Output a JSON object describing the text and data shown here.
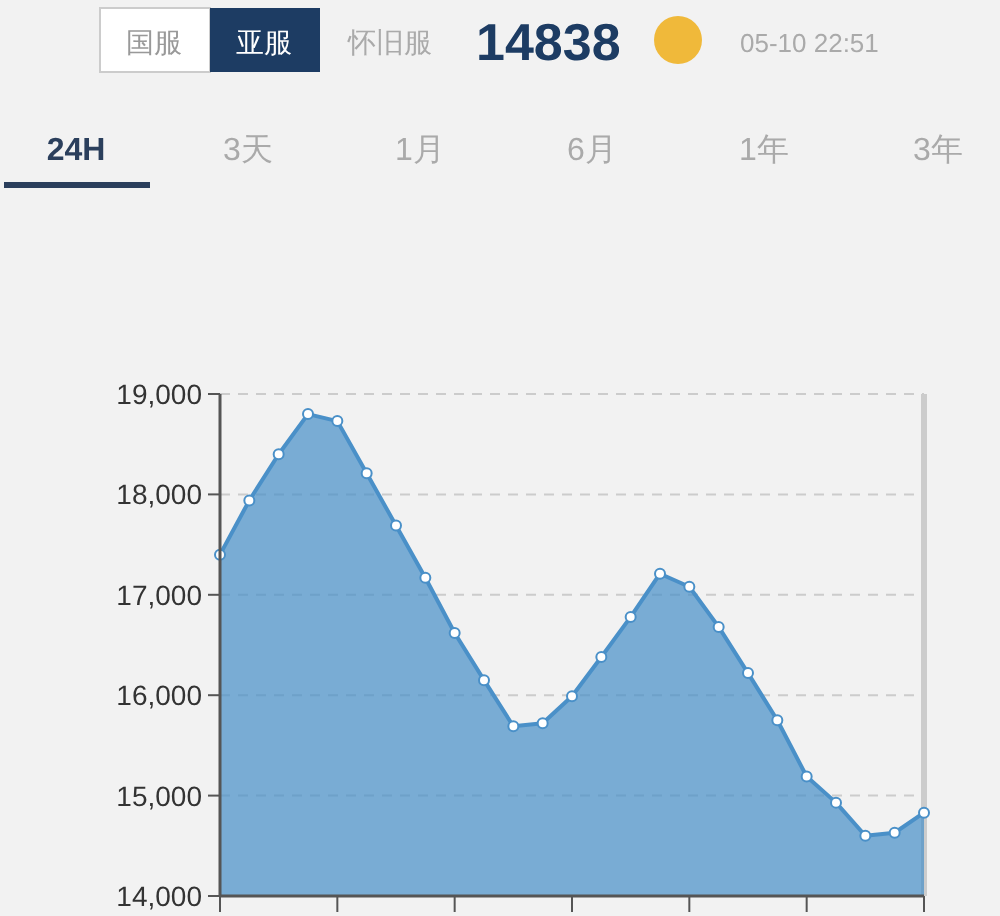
{
  "chart_data": {
    "type": "area",
    "annotations": [
      "国服",
      "亚服",
      "怀旧服",
      "14838",
      "05-10 22:51",
      "24H",
      "3天",
      "1月",
      "6月",
      "1年",
      "3年"
    ],
    "categories": [
      null,
      null,
      null,
      null,
      null,
      null,
      null,
      null,
      null,
      null,
      null,
      null,
      null,
      null,
      null,
      null,
      null,
      null,
      null,
      null,
      null,
      null,
      null,
      null,
      null
    ],
    "series": [
      {
        "color": "#4a90c8",
        "values": [
          17400,
          17940,
          18400,
          18800,
          18730,
          18210,
          17690,
          17170,
          16620,
          16150,
          15690,
          15720,
          15990,
          16380,
          16780,
          17210,
          17080,
          16680,
          16220,
          15750,
          15190,
          14930,
          14600,
          14630,
          14830
        ]
      }
    ],
    "ylim": [
      14000,
      19000
    ],
    "yticks": [
      {
        "value": 14000,
        "label": "14,000"
      },
      {
        "value": 15000,
        "label": "15,000"
      },
      {
        "value": 16000,
        "label": "16,000"
      },
      {
        "value": 17000,
        "label": "17,000"
      },
      {
        "value": 18000,
        "label": "18,000"
      },
      {
        "value": 19000,
        "label": "19,000"
      }
    ],
    "grid": "y",
    "marker": "circle",
    "line_style": "solid"
  }
}
